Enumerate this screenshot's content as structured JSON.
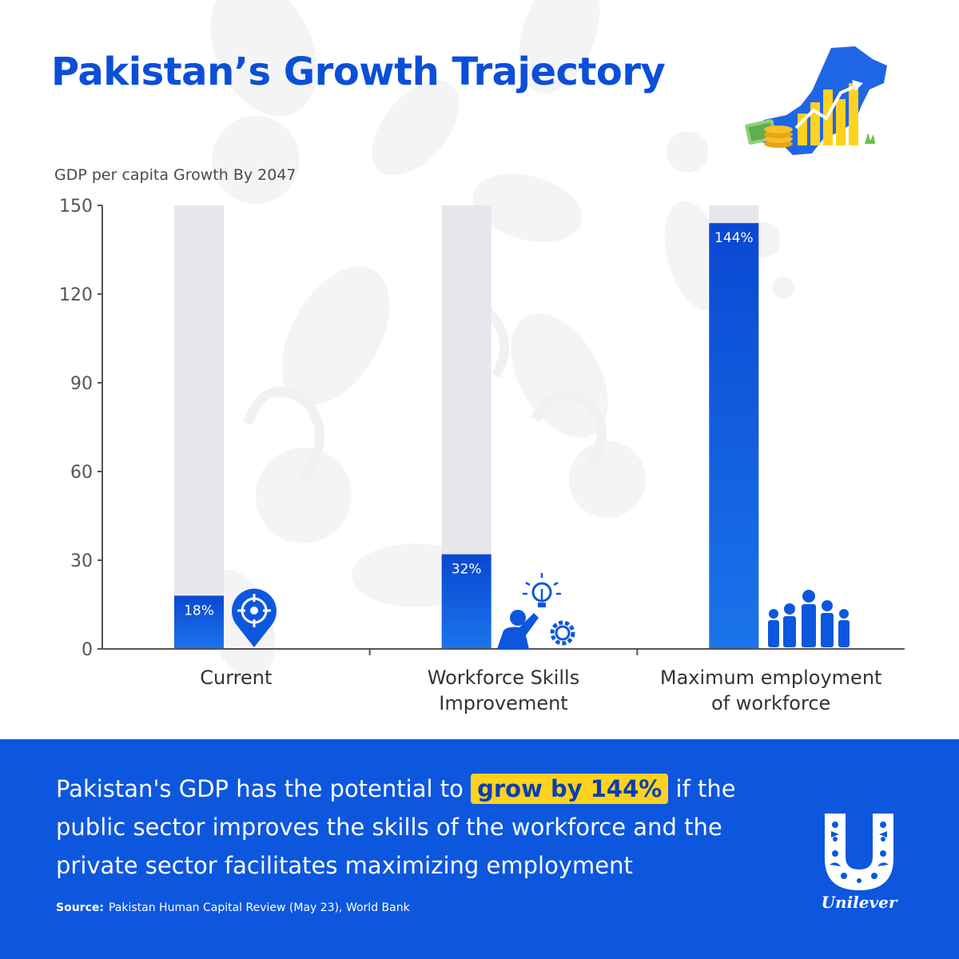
{
  "header": {
    "title": "Pakistan’s Growth Trajectory"
  },
  "chart_data": {
    "type": "bar",
    "title": "",
    "ylabel": "GDP per capita Growth By 2047",
    "xlabel": "",
    "ylim": [
      0,
      150
    ],
    "yticks": [
      "0",
      "30",
      "60",
      "90",
      "120",
      "150"
    ],
    "ytick_values": [
      0,
      30,
      60,
      90,
      120,
      150
    ],
    "grid": false,
    "categories": [
      "Current",
      "Workforce Skills Improvement",
      "Maximum employment of workforce"
    ],
    "category_lines": [
      [
        "Current"
      ],
      [
        "Workforce Skills",
        "Improvement"
      ],
      [
        "Maximum employment",
        "of workforce"
      ]
    ],
    "values": [
      18,
      32,
      144
    ],
    "data_labels": [
      "18%",
      "32%",
      "144%"
    ],
    "background_bar_value": 150,
    "bar_color": "#0d57df",
    "background_bar_color": "#e6e7ea",
    "category_icons": [
      "location-target-icon",
      "person-ideas-gear-icon",
      "workforce-group-icon"
    ]
  },
  "footer": {
    "message_before": "Pakistan's GDP has the potential to",
    "message_highlight": "grow by 144%",
    "message_after": "if the public sector  improves the skills of the workforce and the private sector facilitates maximizing employment",
    "source_label": "Source:",
    "source_text": "Pakistan Human Capital Review (May 23), World Bank",
    "brand": "Unilever"
  },
  "colors": {
    "title": "#0b4fd8",
    "footer_background": "#0d57df",
    "highlight": "#ffd21f",
    "text_white": "#ffffff"
  },
  "icons": {
    "illustration": "pakistan-map-growth-icon",
    "logo": "unilever-u-logo-icon"
  }
}
